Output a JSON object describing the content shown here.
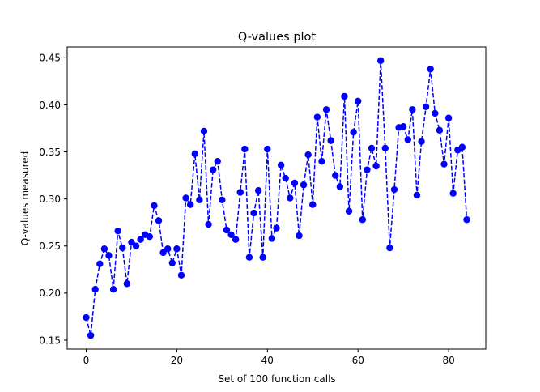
{
  "chart_data": {
    "type": "line",
    "title": "Q-values plot",
    "xlabel": "Set of 100 function calls",
    "ylabel": "Q-values measured",
    "xlim": [
      -4.2,
      88.2
    ],
    "ylim": [
      0.1405,
      0.4615
    ],
    "x_ticks": [
      0,
      20,
      40,
      60,
      80
    ],
    "x_tick_labels": [
      "0",
      "20",
      "40",
      "60",
      "80"
    ],
    "y_ticks": [
      0.15,
      0.2,
      0.25,
      0.3,
      0.35,
      0.4,
      0.45
    ],
    "y_tick_labels": [
      "0.15",
      "0.20",
      "0.25",
      "0.30",
      "0.35",
      "0.40",
      "0.45"
    ],
    "grid": false,
    "legend": "none",
    "series": [
      {
        "color": "#0000ff",
        "line_style": "dashed",
        "marker": "circle",
        "x": [
          0,
          1,
          2,
          3,
          4,
          5,
          6,
          7,
          8,
          9,
          10,
          11,
          12,
          13,
          14,
          15,
          16,
          17,
          18,
          19,
          20,
          21,
          22,
          23,
          24,
          25,
          26,
          27,
          28,
          29,
          30,
          31,
          32,
          33,
          34,
          35,
          36,
          37,
          38,
          39,
          40,
          41,
          42,
          43,
          44,
          45,
          46,
          47,
          48,
          49,
          50,
          51,
          52,
          53,
          54,
          55,
          56,
          57,
          58,
          59,
          60,
          61,
          62,
          63,
          64,
          65,
          66,
          67,
          68,
          69,
          70,
          71,
          72,
          73,
          74,
          75,
          76,
          77,
          78,
          79,
          80,
          81,
          82,
          83,
          84
        ],
        "values": [
          0.174,
          0.155,
          0.204,
          0.231,
          0.247,
          0.24,
          0.204,
          0.266,
          0.248,
          0.21,
          0.254,
          0.25,
          0.257,
          0.262,
          0.26,
          0.293,
          0.277,
          0.243,
          0.247,
          0.232,
          0.247,
          0.219,
          0.301,
          0.294,
          0.348,
          0.299,
          0.372,
          0.273,
          0.331,
          0.34,
          0.299,
          0.267,
          0.262,
          0.257,
          0.307,
          0.353,
          0.238,
          0.285,
          0.309,
          0.238,
          0.353,
          0.258,
          0.269,
          0.336,
          0.322,
          0.301,
          0.317,
          0.261,
          0.315,
          0.347,
          0.294,
          0.387,
          0.34,
          0.395,
          0.362,
          0.325,
          0.313,
          0.409,
          0.287,
          0.371,
          0.404,
          0.278,
          0.331,
          0.354,
          0.335,
          0.447,
          0.354,
          0.248,
          0.31,
          0.376,
          0.377,
          0.363,
          0.395,
          0.304,
          0.361,
          0.398,
          0.438,
          0.391,
          0.373,
          0.337,
          0.386,
          0.306,
          0.352,
          0.355,
          0.278
        ]
      }
    ]
  }
}
